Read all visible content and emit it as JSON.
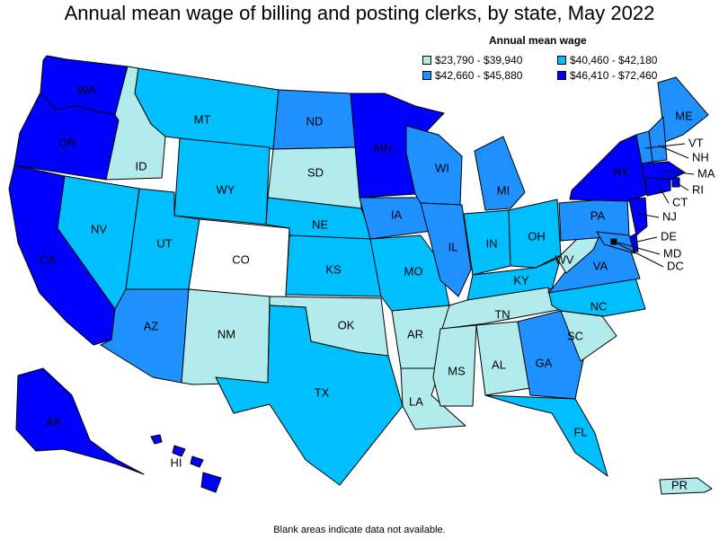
{
  "title": "Annual mean wage of billing and posting clerks, by state, May 2022",
  "legend": {
    "title": "Annual mean wage",
    "items": [
      {
        "label": "$23,790 - $39,940",
        "color": "#b2ebeb"
      },
      {
        "label": "$40,460 - $42,180",
        "color": "#00bfff"
      },
      {
        "label": "$42,660 - $45,880",
        "color": "#1e90ff"
      },
      {
        "label": "$46,410 - $72,460",
        "color": "#0000ff"
      }
    ]
  },
  "footnote": "Blank areas indicate data not available.",
  "nodata_color": "#ffffff",
  "states": [
    {
      "code": "WA",
      "tier": 3
    },
    {
      "code": "OR",
      "tier": 3
    },
    {
      "code": "CA",
      "tier": 3
    },
    {
      "code": "ID",
      "tier": 0
    },
    {
      "code": "NV",
      "tier": 1
    },
    {
      "code": "MT",
      "tier": 1
    },
    {
      "code": "WY",
      "tier": 1
    },
    {
      "code": "UT",
      "tier": 1
    },
    {
      "code": "CO",
      "tier": null
    },
    {
      "code": "AZ",
      "tier": 2
    },
    {
      "code": "NM",
      "tier": 0
    },
    {
      "code": "ND",
      "tier": 2
    },
    {
      "code": "SD",
      "tier": 0
    },
    {
      "code": "NE",
      "tier": 1
    },
    {
      "code": "KS",
      "tier": 1
    },
    {
      "code": "OK",
      "tier": 0
    },
    {
      "code": "TX",
      "tier": 1
    },
    {
      "code": "MN",
      "tier": 3
    },
    {
      "code": "IA",
      "tier": 2
    },
    {
      "code": "MO",
      "tier": 1
    },
    {
      "code": "AR",
      "tier": 0
    },
    {
      "code": "LA",
      "tier": 0
    },
    {
      "code": "WI",
      "tier": 2
    },
    {
      "code": "IL",
      "tier": 2
    },
    {
      "code": "MI",
      "tier": 2
    },
    {
      "code": "IN",
      "tier": 1
    },
    {
      "code": "OH",
      "tier": 1
    },
    {
      "code": "KY",
      "tier": 1
    },
    {
      "code": "TN",
      "tier": 0
    },
    {
      "code": "MS",
      "tier": 0
    },
    {
      "code": "AL",
      "tier": 0
    },
    {
      "code": "GA",
      "tier": 2
    },
    {
      "code": "FL",
      "tier": 1
    },
    {
      "code": "SC",
      "tier": 0
    },
    {
      "code": "NC",
      "tier": 1
    },
    {
      "code": "VA",
      "tier": 2
    },
    {
      "code": "WV",
      "tier": 0
    },
    {
      "code": "PA",
      "tier": 2
    },
    {
      "code": "NY",
      "tier": 3
    },
    {
      "code": "ME",
      "tier": 2
    },
    {
      "code": "VT",
      "tier": 2
    },
    {
      "code": "NH",
      "tier": 2
    },
    {
      "code": "MA",
      "tier": 3
    },
    {
      "code": "RI",
      "tier": 3
    },
    {
      "code": "CT",
      "tier": 3
    },
    {
      "code": "NJ",
      "tier": 3
    },
    {
      "code": "DE",
      "tier": 3
    },
    {
      "code": "MD",
      "tier": 2
    },
    {
      "code": "DC",
      "tier": 3
    },
    {
      "code": "AK",
      "tier": 3
    },
    {
      "code": "HI",
      "tier": 3
    },
    {
      "code": "PR",
      "tier": 0
    }
  ]
}
